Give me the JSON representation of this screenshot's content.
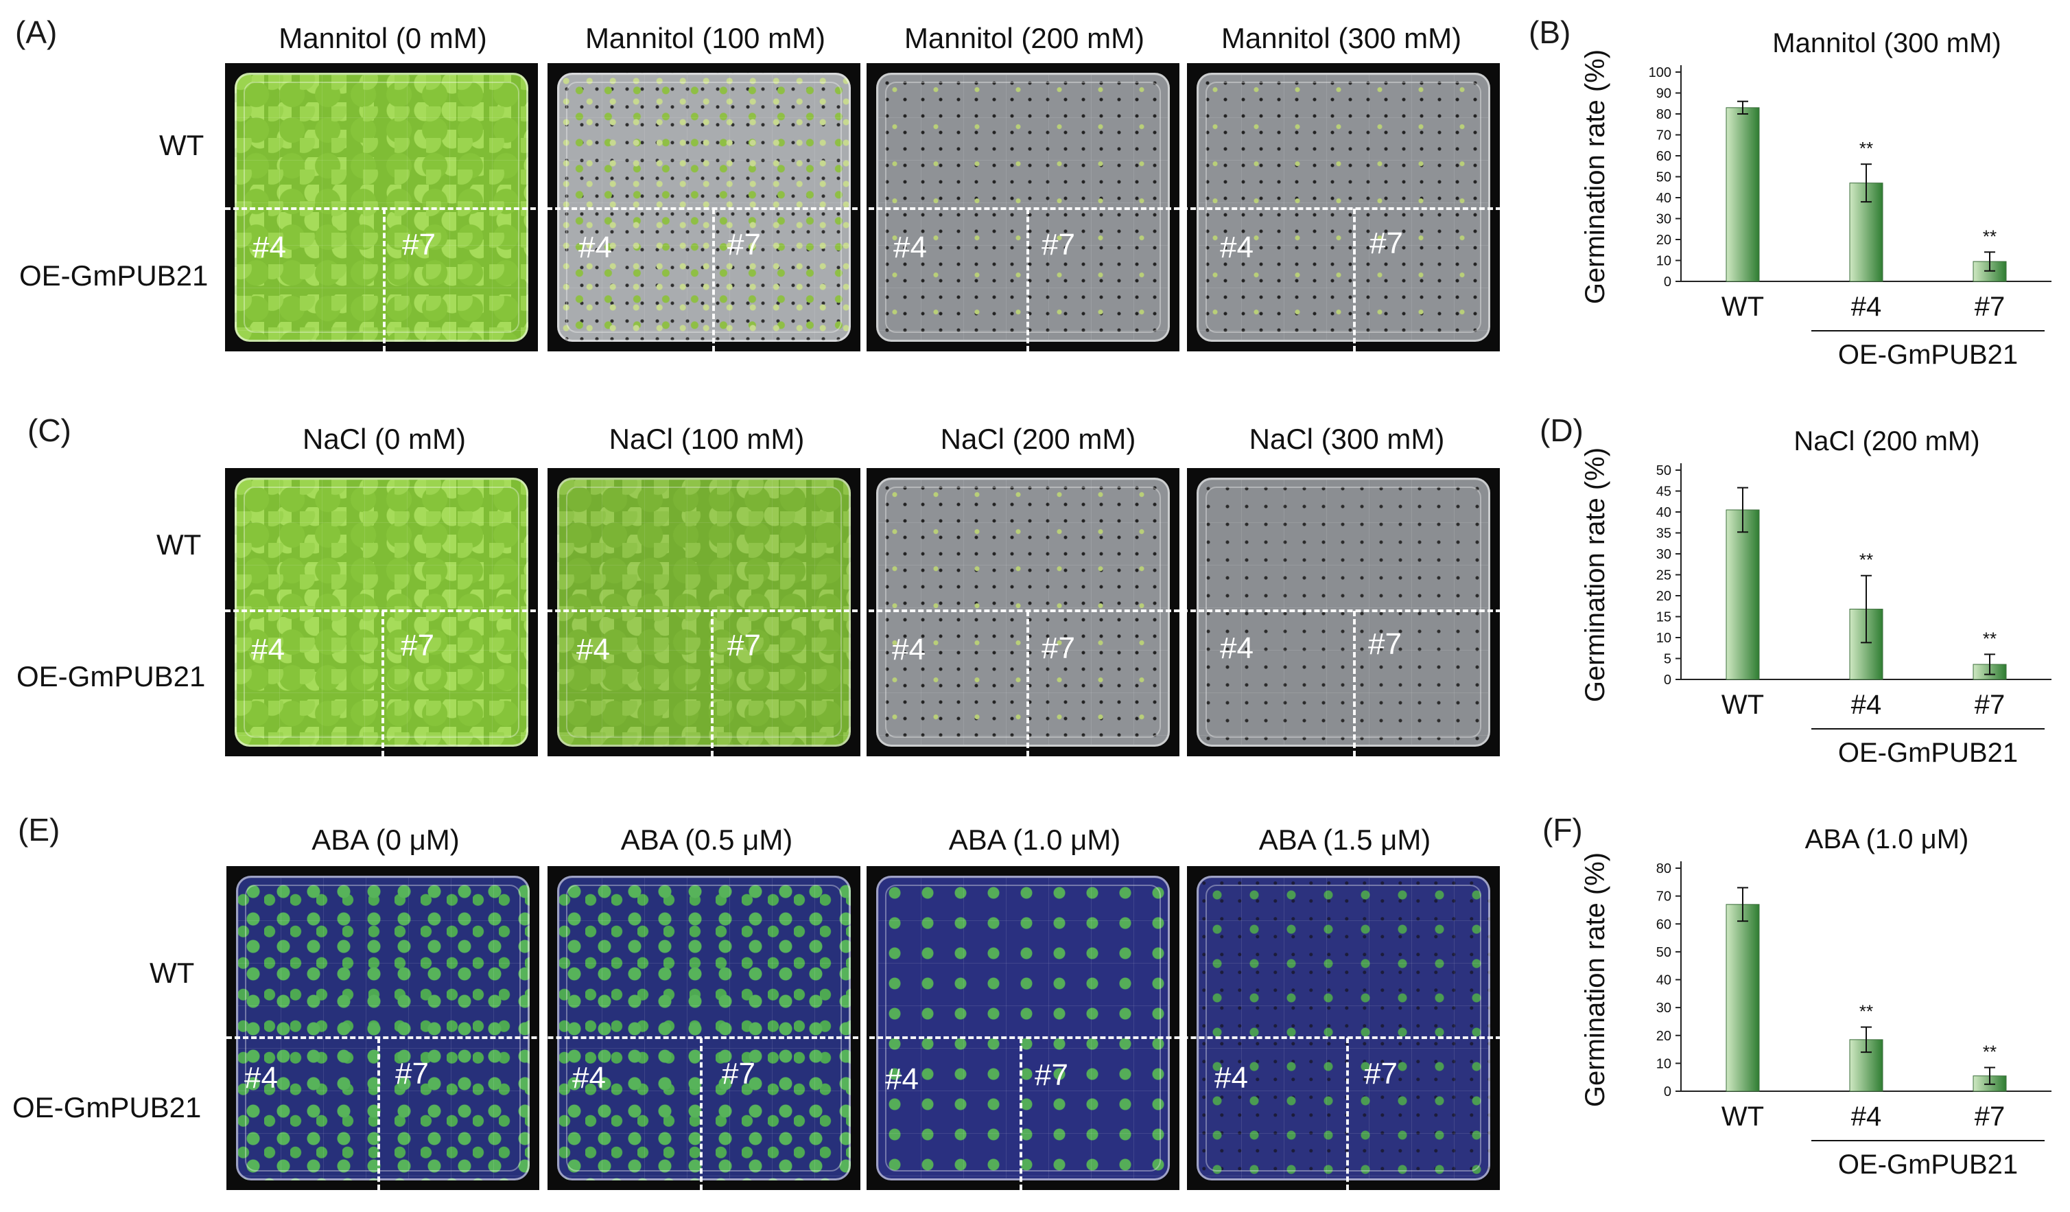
{
  "panel_letters": [
    "(A)",
    "(B)",
    "(C)",
    "(D)",
    "(E)",
    "(F)"
  ],
  "row_labels": {
    "wt": "WT",
    "oe": "OE-GmPUB21"
  },
  "line_labels": {
    "line4": "#4",
    "line7": "#7"
  },
  "rows": [
    {
      "conditions": [
        "Mannitol (0 mM)",
        "Mannitol (100 mM)",
        "Mannitol (200 mM)",
        "Mannitol (300 mM)"
      ]
    },
    {
      "conditions": [
        "NaCl (0 mM)",
        "NaCl (100 mM)",
        "NaCl (200 mM)",
        "NaCl (300 mM)"
      ]
    },
    {
      "conditions": [
        "ABA (0 μM)",
        "ABA (0.5 μM)",
        "ABA (1.0 μM)",
        "ABA (1.5 μM)"
      ]
    }
  ],
  "colors": {
    "bar_light": "#cfe8c2",
    "bar_dark": "#2f7d32",
    "axis": "#222222"
  },
  "chart_data": [
    {
      "type": "bar",
      "title": "Mannitol (300 mM)",
      "ylabel": "Germination rate (%)",
      "categories": [
        "WT",
        "#4",
        "#7"
      ],
      "values": [
        83,
        47,
        9.5
      ],
      "errors": [
        3,
        9,
        4.5
      ],
      "significance": [
        "",
        "**",
        "**"
      ],
      "ylim": [
        0,
        100
      ],
      "yticks": [
        "0",
        "10",
        "20",
        "30",
        "40",
        "50",
        "60",
        "70",
        "80",
        "90",
        "100"
      ],
      "group_label": "OE-GmPUB21"
    },
    {
      "type": "bar",
      "title": "NaCl (200 mM)",
      "ylabel": "Germination rate (%)",
      "categories": [
        "WT",
        "#4",
        "#7"
      ],
      "values": [
        40.5,
        16.8,
        3.6
      ],
      "errors": [
        5.3,
        8,
        2.4
      ],
      "significance": [
        "",
        "**",
        "**"
      ],
      "ylim": [
        0,
        50
      ],
      "yticks": [
        "0",
        "5",
        "10",
        "15",
        "20",
        "25",
        "30",
        "35",
        "40",
        "45",
        "50"
      ],
      "group_label": "OE-GmPUB21"
    },
    {
      "type": "bar",
      "title": "ABA (1.0 μM)",
      "ylabel": "Germination rate (%)",
      "categories": [
        "WT",
        "#4",
        "#7"
      ],
      "values": [
        67,
        18.5,
        5.5
      ],
      "errors": [
        6,
        4.5,
        3
      ],
      "significance": [
        "",
        "**",
        "**"
      ],
      "ylim": [
        0,
        80
      ],
      "yticks": [
        "0",
        "10",
        "20",
        "30",
        "40",
        "50",
        "60",
        "70",
        "80"
      ],
      "group_label": "OE-GmPUB21"
    }
  ]
}
